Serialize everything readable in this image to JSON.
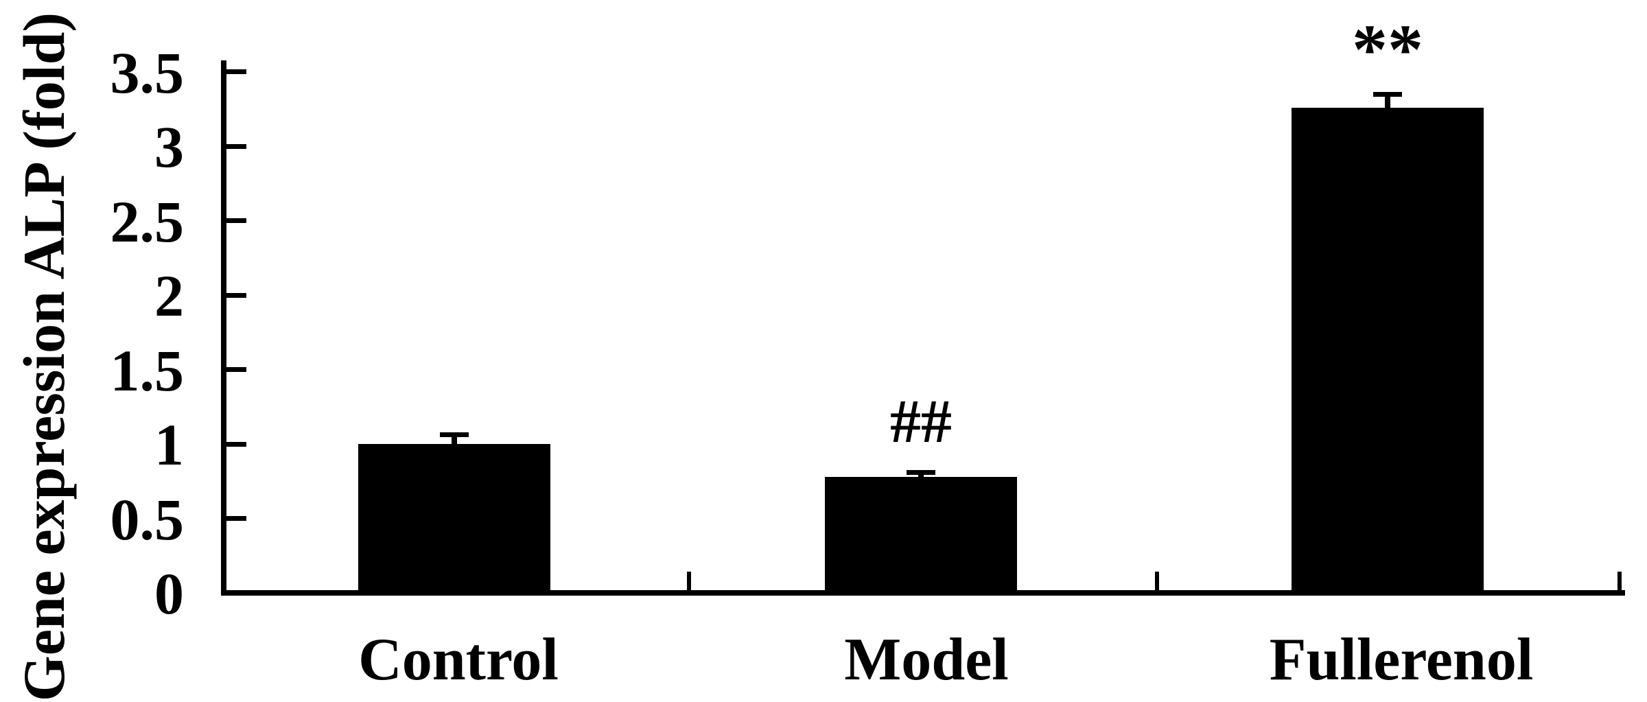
{
  "figure": {
    "background_color": "#ffffff",
    "ink_color": "#000000"
  },
  "chart_data": {
    "type": "bar",
    "title": "",
    "ylabel": "Gene expression ALP (fold)",
    "xlabel": "",
    "categories": [
      "Control",
      "Model",
      "Fullerenol"
    ],
    "values": [
      1.0,
      0.78,
      3.26
    ],
    "error_bars": [
      0.06,
      0.03,
      0.09
    ],
    "annotations": [
      {
        "category": "Model",
        "text": "##"
      },
      {
        "category": "Fullerenol",
        "text": "**"
      }
    ],
    "ylim": [
      0,
      3.5
    ],
    "yticks": [
      0,
      0.5,
      1,
      1.5,
      2,
      2.5,
      3,
      3.5
    ],
    "ytick_labels": [
      "0",
      "0.5",
      "1",
      "1.5",
      "2",
      "2.5",
      "3",
      "3.5"
    ],
    "grid": false,
    "legend": null,
    "bar_color": "#000000"
  }
}
